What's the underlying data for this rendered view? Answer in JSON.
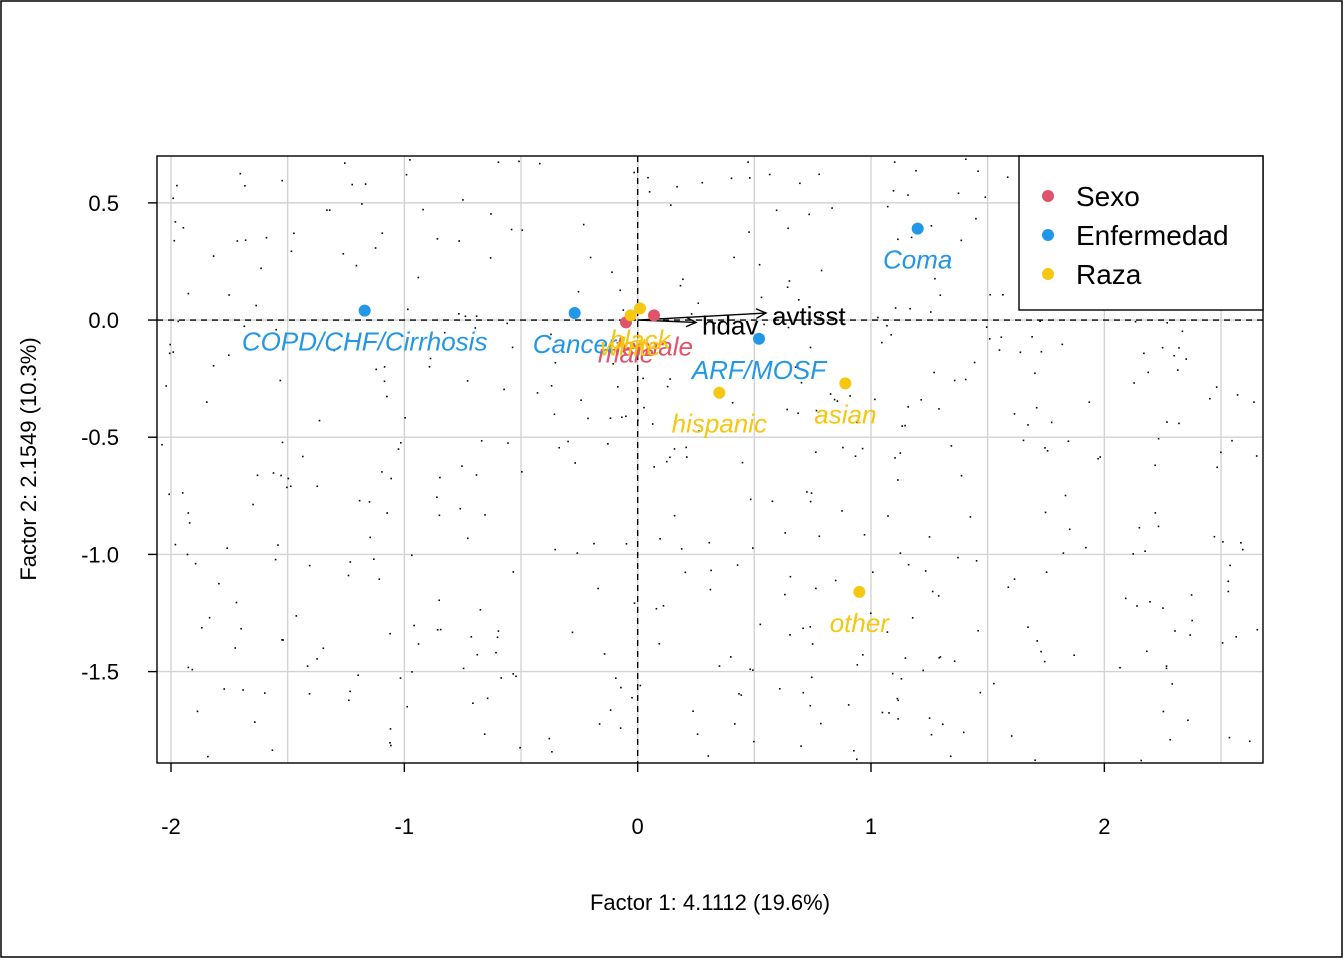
{
  "chart_data": {
    "type": "scatter",
    "title": "",
    "xlabel": "Factor 1: 4.1112 (19.6%)",
    "ylabel": "Factor 2: 2.1549 (10.3%)",
    "xlim": [
      -2.06,
      2.68
    ],
    "ylim": [
      -1.89,
      0.7
    ],
    "x_ticks": [
      -2,
      -1,
      0,
      1,
      2
    ],
    "x_tick_labels": [
      "-2",
      "-1",
      "0",
      "1",
      "2"
    ],
    "y_ticks": [
      0.5,
      0.0,
      -0.5,
      -1.0,
      -1.5
    ],
    "y_tick_labels": [
      "0.5",
      "0.0",
      "-0.5",
      "-1.0",
      "-1.5"
    ],
    "grid_x": [
      -2,
      -1.5,
      -1,
      -0.5,
      0,
      0.5,
      1,
      1.5,
      2,
      2.5
    ],
    "grid_y": [
      0.5,
      0.0,
      -0.5,
      -1.0,
      -1.5
    ],
    "grid": true,
    "reference_lines": {
      "x": 0,
      "y": 0,
      "style": "dashed"
    },
    "legend": {
      "position": "top-right",
      "entries": [
        {
          "label": "Sexo",
          "color": "#DF536B"
        },
        {
          "label": "Enfermedad",
          "color": "#2297E6"
        },
        {
          "label": "Raza",
          "color": "#F5C710"
        }
      ]
    },
    "series": [
      {
        "name": "Sexo",
        "color": "#DF536B",
        "points": [
          {
            "label": "male",
            "x": -0.05,
            "y": -0.01
          },
          {
            "label": "female",
            "x": 0.07,
            "y": 0.02
          }
        ]
      },
      {
        "name": "Enfermedad",
        "color": "#2297E6",
        "points": [
          {
            "label": "COPD/CHF/Cirrhosis",
            "x": -1.17,
            "y": 0.04
          },
          {
            "label": "Cancer",
            "x": -0.27,
            "y": 0.03
          },
          {
            "label": "ARF/MOSF",
            "x": 0.52,
            "y": -0.08
          },
          {
            "label": "Coma",
            "x": 1.2,
            "y": 0.39
          }
        ]
      },
      {
        "name": "Raza",
        "color": "#F5C710",
        "points": [
          {
            "label": "white",
            "x": -0.03,
            "y": 0.02
          },
          {
            "label": "black",
            "x": 0.01,
            "y": 0.05
          },
          {
            "label": "hispanic",
            "x": 0.35,
            "y": -0.31
          },
          {
            "label": "asian",
            "x": 0.89,
            "y": -0.27
          },
          {
            "label": "other",
            "x": 0.95,
            "y": -1.16
          }
        ]
      }
    ],
    "vectors": [
      {
        "label": "hdav",
        "x": 0.25,
        "y": -0.01
      },
      {
        "label": "avtisst",
        "x": 0.55,
        "y": 0.03
      }
    ]
  }
}
